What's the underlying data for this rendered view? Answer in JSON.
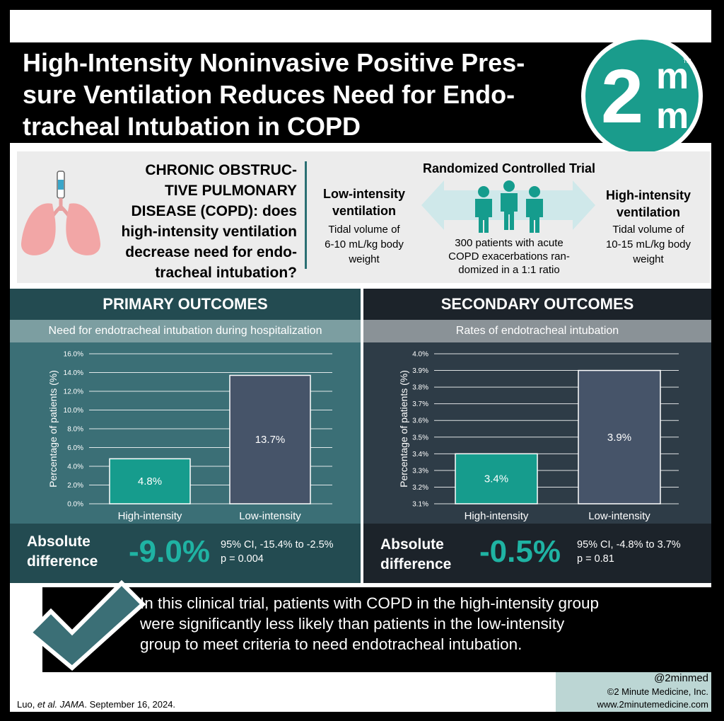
{
  "title": "High-Intensity Noninvasive Positive Pres-sure Ventilation Reduces Need for Endo-tracheal Intubation in COPD",
  "title_lines": [
    "High-Intensity Noninvasive Positive Pres-",
    "sure Ventilation Reduces Need for Endo-",
    "tracheal Intubation in COPD"
  ],
  "logo": {
    "main": "2",
    "m1": "m",
    "m2": "m",
    "tm": "TM"
  },
  "question": {
    "lines": [
      "CHRONIC OBSTRUC-",
      "TIVE PULMONARY",
      "DISEASE (COPD): does",
      "high-intensity ventilation",
      "decrease need for endo-",
      "tracheal intubation?"
    ]
  },
  "design": {
    "title": "Randomized Controlled Trial",
    "low_arm": {
      "title_lines": [
        "Low-intensity",
        "ventilation"
      ],
      "desc_lines": [
        "Tidal volume of",
        "6-10 mL/kg body",
        "weight"
      ]
    },
    "high_arm": {
      "title_lines": [
        "High-intensity",
        "ventilation"
      ],
      "desc_lines": [
        "Tidal volume of",
        "10-15 mL/kg body",
        "weight"
      ]
    },
    "patients_lines": [
      "300 patients with acute",
      "COPD exacerbations ran-",
      "domized in a 1:1 ratio"
    ]
  },
  "primary": {
    "header": "PRIMARY OUTCOMES",
    "subtitle": "Need for endotracheal intubation during hospitalization",
    "abs_label_lines": [
      "Absolute",
      "difference"
    ],
    "abs_value": "-9.0%",
    "stats_lines": [
      "95% CI, -15.4% to -2.5%",
      "p = 0.004"
    ]
  },
  "secondary": {
    "header": "SECONDARY OUTCOMES",
    "subtitle": "Rates of endotracheal intubation",
    "abs_label_lines": [
      "Absolute",
      "difference"
    ],
    "abs_value": "-0.5%",
    "stats_lines": [
      "95% CI, -4.8% to 3.7%",
      "p = 0.81"
    ]
  },
  "chart_data": [
    {
      "type": "bar",
      "title": "Need for endotracheal intubation during hospitalization",
      "ylabel": "Percentage of patients (%)",
      "xlabel": "",
      "categories": [
        "High-intensity",
        "Low-intensity"
      ],
      "values": [
        4.8,
        13.7
      ],
      "value_labels": [
        "4.8%",
        "13.7%"
      ],
      "ylim": [
        0,
        16
      ],
      "yticks": [
        "0.0%",
        "2.0%",
        "4.0%",
        "6.0%",
        "8.0%",
        "10.0%",
        "12.0%",
        "14.0%",
        "16.0%"
      ],
      "grid": true,
      "colors": [
        "#169c8d",
        "#465469"
      ]
    },
    {
      "type": "bar",
      "title": "Rates of endotracheal intubation",
      "ylabel": "Percentage of patients (%)",
      "xlabel": "",
      "categories": [
        "High-intensity",
        "Low-intensity"
      ],
      "values": [
        3.4,
        3.9
      ],
      "value_labels": [
        "3.4%",
        "3.9%"
      ],
      "ylim": [
        3.1,
        4.0
      ],
      "yticks": [
        "3.1%",
        "3.2%",
        "3.3%",
        "3.4%",
        "3.5%",
        "3.6%",
        "3.7%",
        "3.8%",
        "3.9%",
        "4.0%"
      ],
      "grid": true,
      "colors": [
        "#169c8d",
        "#465469"
      ]
    }
  ],
  "conclusion_lines": [
    "In this clinical trial, patients with COPD in the high-intensity group",
    "were significantly less likely than patients in the low-intensity",
    "group to meet criteria to need endotracheal intubation."
  ],
  "footer": {
    "handle": "@2minmed",
    "copyright": "©2 Minute Medicine, Inc.",
    "website": "www.2minutemedicine.com",
    "citation_author": "Luo, ",
    "citation_etal": "et al. ",
    "citation_journal": "JAMA",
    "citation_date": ". September 16, 2024."
  }
}
